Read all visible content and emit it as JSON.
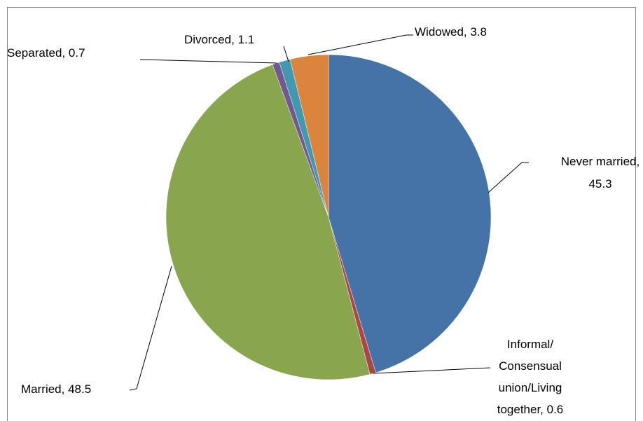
{
  "chart_data": {
    "type": "pie",
    "categories": [
      "Never married,\n45.3",
      "Informal/\nConsensual\nunion/Living\ntogether, 0.6",
      "Married, 48.5",
      "Separated, 0.7",
      "Divorced, 1.1",
      "Widowed, 3.8"
    ],
    "values": [
      45.3,
      0.6,
      48.5,
      0.7,
      1.1,
      3.8
    ],
    "colors": [
      "#4572a7",
      "#aa4643",
      "#89a54e",
      "#71588f",
      "#4198af",
      "#db843d"
    ]
  }
}
